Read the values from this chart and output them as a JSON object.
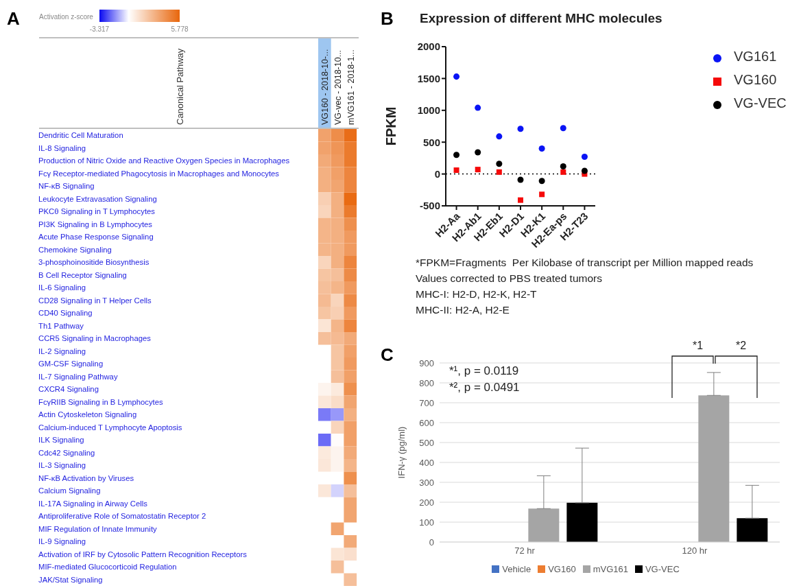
{
  "chart_data": [
    {
      "type": "heatmap",
      "annotations": [
        "A"
      ],
      "clabel": "Activation z-score",
      "ylabel": "Canonical Pathway",
      "categories": [
        "VG160 - 2018-10-...",
        "VG-vec - 2018-10...",
        "mVG161 - 2018-1..."
      ],
      "y_categories": [
        "Dendritic Cell Maturation",
        "IL-8 Signaling",
        "Production of Nitric Oxide and Reactive Oxygen Species in Macrophages",
        "Fcγ Receptor-mediated Phagocytosis in Macrophages and Monocytes",
        "NF-κB Signaling",
        "Leukocyte Extravasation Signaling",
        "PKCθ Signaling in T Lymphocytes",
        "PI3K Signaling in B Lymphocytes",
        "Acute Phase Response Signaling",
        "Chemokine Signaling",
        "3-phosphoinositide Biosynthesis",
        "B Cell Receptor Signaling",
        "IL-6 Signaling",
        "CD28 Signaling in T Helper Cells",
        "CD40 Signaling",
        "Th1 Pathway",
        "CCR5 Signaling in Macrophages",
        "IL-2 Signaling",
        "GM-CSF Signaling",
        "IL-7 Signaling Pathway",
        "CXCR4 Signaling",
        "FcγRIIB Signaling in B Lymphocytes",
        "Actin Cytoskeleton Signaling",
        "Calcium-induced T Lymphocyte Apoptosis",
        "ILK Signaling",
        "Cdc42 Signaling",
        "IL-3 Signaling",
        "NF-κB Activation by Viruses",
        "Calcium Signaling",
        "IL-17A Signaling in Airway Cells",
        "Antiproliferative Role of Somatostatin Receptor 2",
        "MIF Regulation of Innate Immunity",
        "IL-9 Signaling",
        "Activation of IRF by Cytosolic Pattern Recognition Receptors",
        "MIF-mediated Glucocorticoid Regulation",
        "JAK/Stat Signaling"
      ],
      "cells": [
        [
          3.5,
          4.3,
          5.5
        ],
        [
          3.5,
          4.0,
          5.0
        ],
        [
          3.2,
          3.8,
          5.0
        ],
        [
          3.0,
          3.6,
          4.6
        ],
        [
          3.0,
          3.4,
          4.6
        ],
        [
          1.8,
          3.0,
          5.6
        ],
        [
          1.6,
          3.0,
          5.0
        ],
        [
          2.8,
          3.0,
          4.2
        ],
        [
          2.8,
          3.0,
          3.8
        ],
        [
          2.8,
          3.0,
          3.8
        ],
        [
          1.6,
          3.0,
          4.6
        ],
        [
          2.2,
          2.4,
          4.4
        ],
        [
          2.4,
          2.8,
          3.8
        ],
        [
          2.6,
          1.6,
          4.4
        ],
        [
          2.2,
          1.8,
          3.8
        ],
        [
          1.0,
          2.8,
          4.6
        ],
        [
          2.4,
          2.6,
          3.2
        ],
        [
          null,
          2.2,
          3.6
        ],
        [
          null,
          2.2,
          3.8
        ],
        [
          null,
          2.4,
          3.6
        ],
        [
          0.4,
          0.8,
          4.2
        ],
        [
          0.9,
          1.3,
          3.4
        ],
        [
          -1.8,
          -1.4,
          3.0
        ],
        [
          null,
          1.6,
          3.6
        ],
        [
          -2.0,
          0.1,
          3.6
        ],
        [
          0.8,
          0.4,
          3.2
        ],
        [
          0.9,
          0.4,
          2.8
        ],
        [
          null,
          null,
          4.2
        ],
        [
          0.9,
          -0.6,
          2.4
        ],
        [
          null,
          null,
          3.4
        ],
        [
          null,
          null,
          3.4
        ],
        [
          null,
          3.4,
          null
        ],
        [
          null,
          null,
          3.2
        ],
        [
          null,
          1.0,
          1.2
        ],
        [
          null,
          2.4,
          null
        ],
        [
          null,
          null,
          2.4
        ]
      ],
      "clim": [
        -3.317,
        5.778
      ],
      "cticks": [
        -3.317,
        5.778
      ]
    },
    {
      "type": "scatter",
      "title": "Expression of different MHC molecules",
      "ylabel": "FPKM",
      "annotations": [
        "B",
        "*FPKM=Fragments  Per Kilobase of transcript per Million mapped reads",
        "Values corrected to PBS treated tumors",
        "MHC-I: H2-D, H2-K, H2-T",
        "MHC-II: H2-A, H2-E"
      ],
      "categories": [
        "H2-Aa",
        "H2-Ab1",
        "H2-Eb1",
        "H2-D1",
        "H2-K1",
        "H2-Ea-ps",
        "H2-T23"
      ],
      "series": [
        {
          "name": "VG161",
          "color": "#0a14f5",
          "marker": "circle",
          "values": [
            1530,
            1040,
            590,
            710,
            400,
            720,
            270
          ]
        },
        {
          "name": "VG160",
          "color": "#f50a0a",
          "marker": "square",
          "values": [
            60,
            70,
            30,
            -410,
            -320,
            30,
            0
          ]
        },
        {
          "name": "VG-VEC",
          "color": "#000000",
          "marker": "circle",
          "values": [
            300,
            340,
            160,
            -90,
            -110,
            120,
            50
          ]
        }
      ],
      "ylim": [
        -500,
        2000
      ],
      "yticks": [
        -500,
        0,
        500,
        1000,
        1500,
        2000
      ],
      "ref_lines": [
        {
          "axis": "y",
          "value": 0,
          "line_style": "dotted",
          "color": "#000000"
        }
      ],
      "legend": "top right",
      "grid": false
    },
    {
      "type": "bar",
      "ylabel": "IFN-γ (pg/ml)",
      "annotations": [
        "C",
        "*¹, p = 0.0119",
        "*², p = 0.0491",
        "*1",
        "*2"
      ],
      "categories": [
        "72 hr",
        "120 hr"
      ],
      "series": [
        {
          "name": "Vehicle",
          "color": "#4472c4",
          "values": [
            0,
            0
          ]
        },
        {
          "name": "VG160",
          "color": "#ed7d31",
          "values": [
            0,
            0
          ]
        },
        {
          "name": "mVG161",
          "color": "#a5a5a5",
          "values": [
            168,
            737
          ],
          "errors": [
            [
              168,
              333
            ],
            [
              737,
              852
            ]
          ]
        },
        {
          "name": "VG-VEC",
          "color": "#000000",
          "values": [
            197,
            120
          ],
          "errors": [
            [
              197,
              472
            ],
            [
              120,
              285
            ]
          ]
        }
      ],
      "ylim": [
        0,
        900
      ],
      "yticks": [
        0,
        100,
        200,
        300,
        400,
        500,
        600,
        700,
        800,
        900
      ],
      "grid": "y",
      "legend": "bottom"
    }
  ]
}
